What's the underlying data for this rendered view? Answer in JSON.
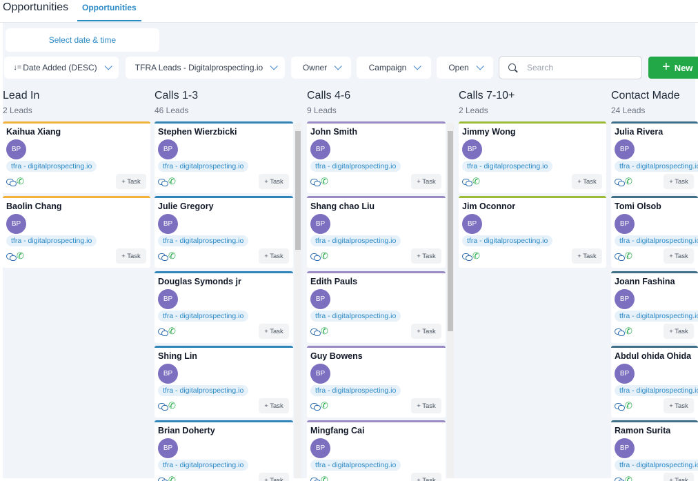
{
  "header": {
    "title": "Opportunities",
    "active_tab": "Opportunities"
  },
  "toolbar": {
    "date_label": "Select date & time",
    "sort_label": "Date Added (DESC)",
    "pipeline_label": "TFRA Leads - Digitalprospecting.io",
    "owner_label": "Owner",
    "campaign_label": "Campaign",
    "status_label": "Open",
    "search_placeholder": "Search",
    "new_label": "New"
  },
  "colors": {
    "accent": "#2b8ac6",
    "green": "#22a846",
    "avatar": "#7c6fbf",
    "lead_in": "#f2b13a",
    "calls_1_3": "#2f84b8",
    "calls_4_6": "#9a8ac4",
    "calls_7_10": "#9cbb3b",
    "contact_made": "#3f6f86"
  },
  "icons": [
    "sort-icon",
    "chevron-down-icon",
    "search-icon",
    "plus-icon",
    "chat-icon",
    "phone-icon"
  ],
  "columns": [
    {
      "title": "Lead In",
      "count": "2 Leads",
      "cards": [
        {
          "name": "Kaihua Xiang",
          "initials": "BP",
          "tag": "tfra - digitalprospecting.io",
          "task": "+ Task"
        },
        {
          "name": "Baolin Chang",
          "initials": "BP",
          "tag": "tfra - digitalprospecting.io",
          "task": "+ Task"
        }
      ]
    },
    {
      "title": "Calls 1-3",
      "count": "46 Leads",
      "cards": [
        {
          "name": "Stephen Wierzbicki",
          "initials": "BP",
          "tag": "tfra - digitalprospecting.io",
          "task": "+ Task"
        },
        {
          "name": "Julie Gregory",
          "initials": "BP",
          "tag": "tfra - digitalprospecting.io",
          "task": "+ Task"
        },
        {
          "name": "Douglas Symonds jr",
          "initials": "BP",
          "tag": "tfra - digitalprospecting.io",
          "task": "+ Task"
        },
        {
          "name": "Shing Lin",
          "initials": "BP",
          "tag": "tfra - digitalprospecting.io",
          "task": "+ Task"
        },
        {
          "name": "Brian Doherty",
          "initials": "BP",
          "tag": "tfra - digitalprospecting.io",
          "task": "+ Task"
        }
      ]
    },
    {
      "title": "Calls 4-6",
      "count": "9 Leads",
      "cards": [
        {
          "name": "John Smith",
          "initials": "BP",
          "tag": "tfra - digitalprospecting.io",
          "task": "+ Task"
        },
        {
          "name": "Shang chao Liu",
          "initials": "BP",
          "tag": "tfra - digitalprospecting.io",
          "task": "+ Task"
        },
        {
          "name": "Edith Pauls",
          "initials": "BP",
          "tag": "tfra - digitalprospecting.io",
          "task": "+ Task"
        },
        {
          "name": "Guy Bowens",
          "initials": "BP",
          "tag": "tfra - digitalprospecting.io",
          "task": "+ Task"
        },
        {
          "name": "Mingfang Cai",
          "initials": "BP",
          "tag": "tfra - digitalprospecting.io",
          "task": "+ Task"
        }
      ]
    },
    {
      "title": "Calls 7-10+",
      "count": "2 Leads",
      "cards": [
        {
          "name": "Jimmy Wong",
          "initials": "BP",
          "tag": "tfra - digitalprospecting.io",
          "task": "+ Task"
        },
        {
          "name": "Jim Oconnor",
          "initials": "BP",
          "tag": "tfra - digitalprospecting.io",
          "task": "+ Task"
        }
      ]
    },
    {
      "title": "Contact Made",
      "count": "24 Leads",
      "cards": [
        {
          "name": "Julia Rivera",
          "initials": "BP",
          "tag": "tfra - digitalprospecting.io",
          "task": "+ Task"
        },
        {
          "name": "Tomi Olsob",
          "initials": "BP",
          "tag": "tfra - digitalprospecting.io",
          "task": "+ Task"
        },
        {
          "name": "Joann Fashina",
          "initials": "BP",
          "tag": "tfra - digitalprospecting.io",
          "task": "+ Task"
        },
        {
          "name": "Abdul ohida Ohida",
          "initials": "BP",
          "tag": "tfra - digitalprospecting.io",
          "task": "+ Task"
        },
        {
          "name": "Ramon Surita",
          "initials": "BP",
          "tag": "tfra - digitalprospecting.io",
          "task": "+ Task"
        }
      ]
    }
  ]
}
